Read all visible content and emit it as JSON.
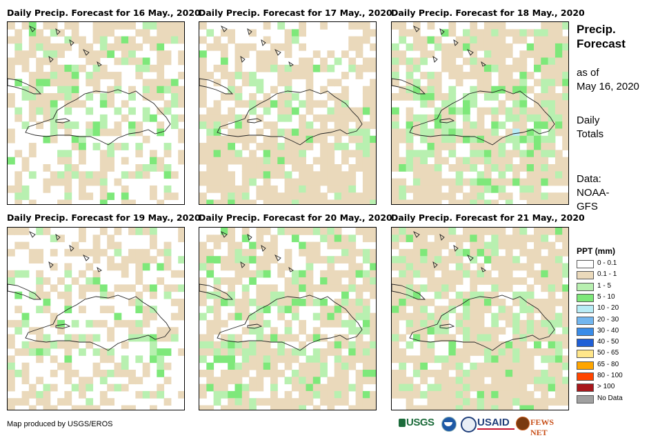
{
  "panels": [
    {
      "title": "Daily Precip. Forecast for 16 May., 2020"
    },
    {
      "title": "Daily Precip. Forecast for 17 May., 2020"
    },
    {
      "title": "Daily Precip. Forecast for 18 May., 2020"
    },
    {
      "title": "Daily Precip. Forecast for 19 May., 2020"
    },
    {
      "title": "Daily Precip. Forecast for 20 May., 2020"
    },
    {
      "title": "Daily Precip. Forecast for 21 May., 2020"
    }
  ],
  "sidebar": {
    "title": "Precip. Forecast",
    "as_of_label": "as of",
    "as_of_date": "May 16, 2020",
    "totals_label": "Daily Totals",
    "source_label": "Data:",
    "source_value": "NOAA-GFS"
  },
  "legend": {
    "title": "PPT (mm)",
    "items": [
      {
        "label": "0 - 0.1",
        "color": "#ffffff"
      },
      {
        "label": "0.1 - 1",
        "color": "#ead9bb"
      },
      {
        "label": "1 - 5",
        "color": "#b8f0b0"
      },
      {
        "label": "5 - 10",
        "color": "#7ee87a"
      },
      {
        "label": "10 - 20",
        "color": "#b8ecf6"
      },
      {
        "label": "20 - 30",
        "color": "#72b6ef"
      },
      {
        "label": "30 - 40",
        "color": "#3a8ce8"
      },
      {
        "label": "40 - 50",
        "color": "#1f5fd6"
      },
      {
        "label": "50 - 65",
        "color": "#ffe68a"
      },
      {
        "label": "65 - 80",
        "color": "#ffa500"
      },
      {
        "label": "80 - 100",
        "color": "#ff4500"
      },
      {
        "label": "> 100",
        "color": "#a8171c"
      },
      {
        "label": "No Data",
        "color": "#a0a0a0"
      }
    ]
  },
  "credit": "Map produced by USGS/EROS",
  "logos": [
    "USGS",
    "USAID",
    "FEWS NET"
  ]
}
